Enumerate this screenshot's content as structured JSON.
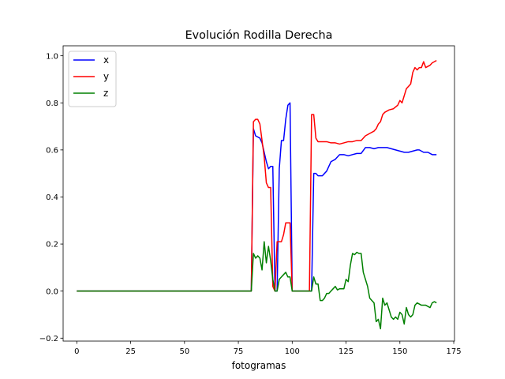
{
  "chart_data": {
    "type": "line",
    "title": "Evolución Rodilla Derecha",
    "xlabel": "fotogramas",
    "ylabel": "",
    "xlim": [
      -6.35,
      175.35
    ],
    "ylim": [
      -0.2125,
      1.0425
    ],
    "xticks": [
      0,
      25,
      50,
      75,
      100,
      125,
      150,
      175
    ],
    "yticks": [
      -0.2,
      0.0,
      0.2,
      0.4,
      0.6,
      0.8,
      1.0
    ],
    "xtick_labels": [
      "0",
      "25",
      "50",
      "75",
      "100",
      "125",
      "150",
      "175"
    ],
    "ytick_labels": [
      "−0.2",
      "0.0",
      "0.2",
      "0.4",
      "0.6",
      "0.8",
      "1.0"
    ],
    "grid": false,
    "legend_position": "top-left",
    "series": [
      {
        "name": "x",
        "color": "#0000ff",
        "points": [
          [
            0,
            0
          ],
          [
            81,
            0
          ],
          [
            82,
            0.69
          ],
          [
            83,
            0.66
          ],
          [
            85,
            0.65
          ],
          [
            86,
            0.63
          ],
          [
            88,
            0.55
          ],
          [
            89,
            0.52
          ],
          [
            90,
            0.53
          ],
          [
            91,
            0.53
          ],
          [
            92,
            0
          ],
          [
            93,
            0
          ],
          [
            94,
            0.52
          ],
          [
            95,
            0.64
          ],
          [
            96,
            0.64
          ],
          [
            97,
            0.73
          ],
          [
            98,
            0.79
          ],
          [
            99,
            0.8
          ],
          [
            100,
            0
          ],
          [
            109,
            0
          ],
          [
            110,
            0.5
          ],
          [
            111,
            0.5
          ],
          [
            112,
            0.49
          ],
          [
            114,
            0.49
          ],
          [
            116,
            0.51
          ],
          [
            118,
            0.55
          ],
          [
            120,
            0.56
          ],
          [
            122,
            0.58
          ],
          [
            124,
            0.58
          ],
          [
            126,
            0.575
          ],
          [
            128,
            0.58
          ],
          [
            130,
            0.585
          ],
          [
            132,
            0.585
          ],
          [
            134,
            0.61
          ],
          [
            136,
            0.61
          ],
          [
            138,
            0.605
          ],
          [
            140,
            0.61
          ],
          [
            142,
            0.61
          ],
          [
            144,
            0.61
          ],
          [
            146,
            0.605
          ],
          [
            148,
            0.6
          ],
          [
            150,
            0.595
          ],
          [
            152,
            0.59
          ],
          [
            154,
            0.59
          ],
          [
            156,
            0.595
          ],
          [
            158,
            0.6
          ],
          [
            159,
            0.6
          ],
          [
            161,
            0.59
          ],
          [
            163,
            0.59
          ],
          [
            165,
            0.58
          ],
          [
            167,
            0.58
          ]
        ]
      },
      {
        "name": "y",
        "color": "#ff0000",
        "points": [
          [
            0,
            0
          ],
          [
            81,
            0
          ],
          [
            82,
            0.72
          ],
          [
            83,
            0.73
          ],
          [
            84,
            0.73
          ],
          [
            85,
            0.71
          ],
          [
            86,
            0.64
          ],
          [
            87,
            0.57
          ],
          [
            88,
            0.46
          ],
          [
            89,
            0.44
          ],
          [
            90,
            0.44
          ],
          [
            91,
            0.02
          ],
          [
            92,
            0
          ],
          [
            93,
            0.21
          ],
          [
            94,
            0.21
          ],
          [
            95,
            0.21
          ],
          [
            96,
            0.24
          ],
          [
            97,
            0.29
          ],
          [
            98,
            0.29
          ],
          [
            99,
            0.29
          ],
          [
            100,
            0
          ],
          [
            108,
            0
          ],
          [
            109,
            0.75
          ],
          [
            110,
            0.75
          ],
          [
            111,
            0.65
          ],
          [
            112,
            0.635
          ],
          [
            114,
            0.635
          ],
          [
            116,
            0.635
          ],
          [
            118,
            0.63
          ],
          [
            120,
            0.63
          ],
          [
            122,
            0.625
          ],
          [
            124,
            0.63
          ],
          [
            126,
            0.635
          ],
          [
            128,
            0.635
          ],
          [
            130,
            0.64
          ],
          [
            132,
            0.64
          ],
          [
            134,
            0.66
          ],
          [
            136,
            0.67
          ],
          [
            138,
            0.68
          ],
          [
            139,
            0.69
          ],
          [
            140,
            0.71
          ],
          [
            141,
            0.72
          ],
          [
            142,
            0.75
          ],
          [
            143,
            0.76
          ],
          [
            145,
            0.77
          ],
          [
            147,
            0.775
          ],
          [
            149,
            0.79
          ],
          [
            150,
            0.81
          ],
          [
            151,
            0.8
          ],
          [
            152,
            0.83
          ],
          [
            153,
            0.86
          ],
          [
            154,
            0.87
          ],
          [
            155,
            0.88
          ],
          [
            156,
            0.93
          ],
          [
            157,
            0.95
          ],
          [
            158,
            0.94
          ],
          [
            159,
            0.95
          ],
          [
            160,
            0.95
          ],
          [
            161,
            0.975
          ],
          [
            162,
            0.95
          ],
          [
            163,
            0.955
          ],
          [
            164,
            0.96
          ],
          [
            165,
            0.97
          ],
          [
            167,
            0.98
          ]
        ]
      },
      {
        "name": "z",
        "color": "#008000",
        "points": [
          [
            0,
            0
          ],
          [
            81,
            0
          ],
          [
            82,
            0.16
          ],
          [
            83,
            0.14
          ],
          [
            84,
            0.15
          ],
          [
            85,
            0.14
          ],
          [
            86,
            0.09
          ],
          [
            87,
            0.21
          ],
          [
            88,
            0.12
          ],
          [
            89,
            0.19
          ],
          [
            90,
            0.13
          ],
          [
            91,
            0.05
          ],
          [
            92,
            0
          ],
          [
            93,
            0
          ],
          [
            94,
            0.05
          ],
          [
            95,
            0.06
          ],
          [
            96,
            0.07
          ],
          [
            97,
            0.08
          ],
          [
            98,
            0.06
          ],
          [
            99,
            0.06
          ],
          [
            100,
            0
          ],
          [
            109,
            0
          ],
          [
            110,
            0.06
          ],
          [
            111,
            0.03
          ],
          [
            112,
            0.03
          ],
          [
            113,
            -0.04
          ],
          [
            114,
            -0.04
          ],
          [
            115,
            -0.03
          ],
          [
            116,
            -0.01
          ],
          [
            117,
            -0.01
          ],
          [
            118,
            0
          ],
          [
            119,
            0.01
          ],
          [
            120,
            0.02
          ],
          [
            121,
            0.005
          ],
          [
            122,
            0.01
          ],
          [
            123,
            0.01
          ],
          [
            124,
            0.01
          ],
          [
            125,
            0.05
          ],
          [
            126,
            0.04
          ],
          [
            127,
            0.11
          ],
          [
            128,
            0.16
          ],
          [
            129,
            0.155
          ],
          [
            130,
            0.165
          ],
          [
            131,
            0.16
          ],
          [
            132,
            0.16
          ],
          [
            133,
            0.08
          ],
          [
            134,
            0.05
          ],
          [
            135,
            0.02
          ],
          [
            136,
            -0.03
          ],
          [
            137,
            -0.04
          ],
          [
            138,
            -0.05
          ],
          [
            139,
            -0.13
          ],
          [
            140,
            -0.12
          ],
          [
            141,
            -0.16
          ],
          [
            142,
            -0.03
          ],
          [
            143,
            -0.06
          ],
          [
            144,
            -0.05
          ],
          [
            145,
            -0.08
          ],
          [
            146,
            -0.11
          ],
          [
            147,
            -0.12
          ],
          [
            148,
            -0.11
          ],
          [
            149,
            -0.12
          ],
          [
            150,
            -0.09
          ],
          [
            151,
            -0.1
          ],
          [
            152,
            -0.14
          ],
          [
            153,
            -0.07
          ],
          [
            154,
            -0.1
          ],
          [
            155,
            -0.11
          ],
          [
            156,
            -0.1
          ],
          [
            157,
            -0.06
          ],
          [
            158,
            -0.05
          ],
          [
            160,
            -0.06
          ],
          [
            162,
            -0.06
          ],
          [
            164,
            -0.07
          ],
          [
            165,
            -0.05
          ],
          [
            166,
            -0.045
          ],
          [
            167,
            -0.05
          ]
        ]
      }
    ]
  }
}
